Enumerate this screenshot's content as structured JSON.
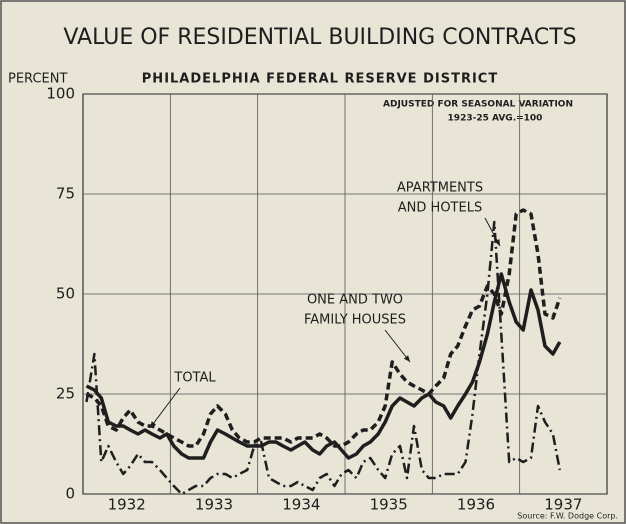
{
  "chart_data": {
    "type": "line",
    "title": "VALUE OF RESIDENTIAL BUILDING CONTRACTS",
    "subtitle": "PHILADELPHIA FEDERAL RESERVE DISTRICT",
    "y_label": "PERCENT",
    "notes": [
      "ADJUSTED FOR SEASONAL VARIATION",
      "1923-25 AVG.=100"
    ],
    "source": "Source: F.W. Dodge Corp.",
    "x": [
      1932.04,
      1932.13,
      1932.21,
      1932.29,
      1932.38,
      1932.46,
      1932.54,
      1932.63,
      1932.71,
      1932.79,
      1932.88,
      1932.96,
      1933.04,
      1933.13,
      1933.21,
      1933.29,
      1933.38,
      1933.46,
      1933.54,
      1933.63,
      1933.71,
      1933.79,
      1933.88,
      1933.96,
      1934.04,
      1934.13,
      1934.21,
      1934.29,
      1934.38,
      1934.46,
      1934.54,
      1934.63,
      1934.71,
      1934.79,
      1934.88,
      1934.96,
      1935.04,
      1935.13,
      1935.21,
      1935.29,
      1935.38,
      1935.46,
      1935.54,
      1935.63,
      1935.71,
      1935.79,
      1935.88,
      1935.96,
      1936.04,
      1936.13,
      1936.21,
      1936.29,
      1936.38,
      1936.46,
      1936.54,
      1936.63,
      1936.71,
      1936.79,
      1936.88,
      1936.96,
      1937.04,
      1937.13,
      1937.21,
      1937.29,
      1937.38,
      1937.46
    ],
    "xlim": [
      1932,
      1938
    ],
    "xticks": [
      {
        "value": 1932.5,
        "label": "1932"
      },
      {
        "value": 1933.5,
        "label": "1933"
      },
      {
        "value": 1934.5,
        "label": "1934"
      },
      {
        "value": 1935.5,
        "label": "1935"
      },
      {
        "value": 1936.5,
        "label": "1936"
      },
      {
        "value": 1937.5,
        "label": "1937"
      }
    ],
    "xgrid": [
      1933,
      1934,
      1935,
      1936,
      1937
    ],
    "ylim": [
      0,
      100
    ],
    "yticks": [
      0,
      25,
      50,
      75,
      100
    ],
    "grid": true,
    "series": [
      {
        "label": [
          "TOTAL"
        ],
        "color": "#1e1e1e",
        "style": "solid",
        "values": [
          27,
          26,
          24,
          18,
          17,
          17,
          16,
          15,
          16,
          15,
          14,
          15,
          12,
          10,
          9,
          9,
          9,
          13,
          16,
          15,
          14,
          13,
          12,
          12,
          12,
          13,
          13,
          12,
          11,
          12,
          13,
          11,
          10,
          12,
          13,
          11,
          9,
          10,
          12,
          13,
          15,
          18,
          22,
          24,
          23,
          22,
          24,
          25,
          23,
          22,
          19,
          22,
          25,
          28,
          33,
          40,
          48,
          55,
          48,
          43,
          41,
          51,
          46,
          37,
          35,
          38
        ]
      },
      {
        "label": [
          "ONE AND TWO",
          "FAMILY HOUSES"
        ],
        "color": "#1e1e1e",
        "style": "dashed",
        "values": [
          25,
          24,
          22,
          17,
          16,
          19,
          21,
          18,
          17,
          17,
          16,
          15,
          14,
          13,
          12,
          12,
          15,
          20,
          22,
          20,
          16,
          14,
          13,
          13,
          14,
          14,
          14,
          14,
          13,
          14,
          14,
          14,
          15,
          14,
          12,
          12,
          13,
          15,
          16,
          16,
          18,
          22,
          33,
          30,
          28,
          27,
          26,
          25,
          27,
          29,
          35,
          37,
          42,
          46,
          47,
          52,
          50,
          45,
          55,
          70,
          71,
          70,
          60,
          45,
          44,
          49
        ]
      },
      {
        "label": [
          "APARTMENTS",
          "AND HOTELS"
        ],
        "color": "#1e1e1e",
        "style": "dashdot",
        "values": [
          23,
          35,
          8,
          12,
          8,
          5,
          7,
          10,
          8,
          8,
          6,
          4,
          2,
          0,
          1,
          2,
          2,
          4,
          5,
          5,
          4,
          5,
          6,
          12,
          13,
          4,
          3,
          2,
          2,
          3,
          2,
          1,
          4,
          5,
          2,
          5,
          6,
          4,
          8,
          9,
          6,
          4,
          10,
          12,
          4,
          17,
          6,
          4,
          4,
          5,
          5,
          5,
          8,
          20,
          35,
          50,
          68,
          40,
          8,
          9,
          8,
          9,
          22,
          18,
          15,
          6
        ]
      }
    ]
  }
}
